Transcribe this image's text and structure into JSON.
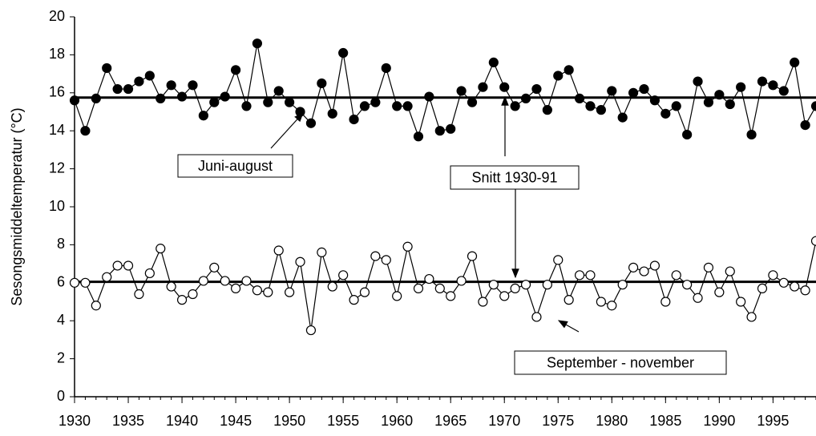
{
  "chart_data": {
    "type": "line",
    "y_label": "Sesongsmiddeltemperatur (°C)",
    "x": [
      1930,
      1931,
      1932,
      1933,
      1934,
      1935,
      1936,
      1937,
      1938,
      1939,
      1940,
      1941,
      1942,
      1943,
      1944,
      1945,
      1946,
      1947,
      1948,
      1949,
      1950,
      1951,
      1952,
      1953,
      1954,
      1955,
      1956,
      1957,
      1958,
      1959,
      1960,
      1961,
      1962,
      1963,
      1964,
      1965,
      1966,
      1967,
      1968,
      1969,
      1970,
      1971,
      1972,
      1973,
      1974,
      1975,
      1976,
      1977,
      1978,
      1979,
      1980,
      1981,
      1982,
      1983,
      1984,
      1985,
      1986,
      1987,
      1988,
      1989,
      1990,
      1991,
      1992,
      1993,
      1994,
      1995,
      1996,
      1997,
      1998,
      1999
    ],
    "series": [
      {
        "name": "Juni-august",
        "color": "#000000",
        "marker": "filled",
        "values": [
          15.6,
          14.0,
          15.7,
          17.3,
          16.2,
          16.2,
          16.6,
          16.9,
          15.7,
          16.4,
          15.8,
          16.4,
          14.8,
          15.5,
          15.8,
          17.2,
          15.3,
          18.6,
          15.5,
          16.1,
          15.5,
          15.0,
          14.4,
          16.5,
          14.9,
          18.1,
          14.6,
          15.3,
          15.5,
          17.3,
          15.3,
          15.3,
          13.7,
          15.8,
          14.0,
          14.1,
          16.1,
          15.5,
          16.3,
          17.6,
          16.3,
          15.3,
          15.7,
          16.2,
          15.1,
          16.9,
          17.2,
          15.7,
          15.3,
          15.1,
          16.1,
          14.7,
          16.0,
          16.2,
          15.6,
          14.9,
          15.3,
          13.8,
          16.6,
          15.5,
          15.9,
          15.4,
          16.3,
          13.8,
          16.6,
          16.4,
          16.1,
          17.6,
          14.3,
          15.3
        ]
      },
      {
        "name": "September - november",
        "color": "#000000",
        "marker": "open",
        "values": [
          6.0,
          6.0,
          4.8,
          6.3,
          6.9,
          6.9,
          5.4,
          6.5,
          7.8,
          5.8,
          5.1,
          5.4,
          6.1,
          6.8,
          6.1,
          5.7,
          6.1,
          5.6,
          5.5,
          7.7,
          5.5,
          7.1,
          3.5,
          7.6,
          5.8,
          6.4,
          5.1,
          5.5,
          7.4,
          7.2,
          5.3,
          7.9,
          5.7,
          6.2,
          5.7,
          5.3,
          6.1,
          7.4,
          5.0,
          5.9,
          5.3,
          5.7,
          5.9,
          4.2,
          5.9,
          7.2,
          5.1,
          6.4,
          6.4,
          5.0,
          4.8,
          5.9,
          6.8,
          6.6,
          6.9,
          5.0,
          6.4,
          5.9,
          5.2,
          6.8,
          5.5,
          6.6,
          5.0,
          4.2,
          5.7,
          6.4,
          6.0,
          5.8,
          5.6,
          8.2
        ]
      }
    ],
    "reference_lines": {
      "label": "Snitt 1930-91",
      "values": [
        15.75,
        6.05
      ]
    },
    "xlim": [
      1930,
      1999
    ],
    "xticks": [
      1930,
      1935,
      1940,
      1945,
      1950,
      1955,
      1960,
      1965,
      1970,
      1975,
      1980,
      1985,
      1990,
      1995
    ],
    "ylim": [
      0,
      20
    ],
    "yticks": [
      0,
      2,
      4,
      6,
      8,
      10,
      12,
      14,
      16,
      18,
      20
    ]
  }
}
